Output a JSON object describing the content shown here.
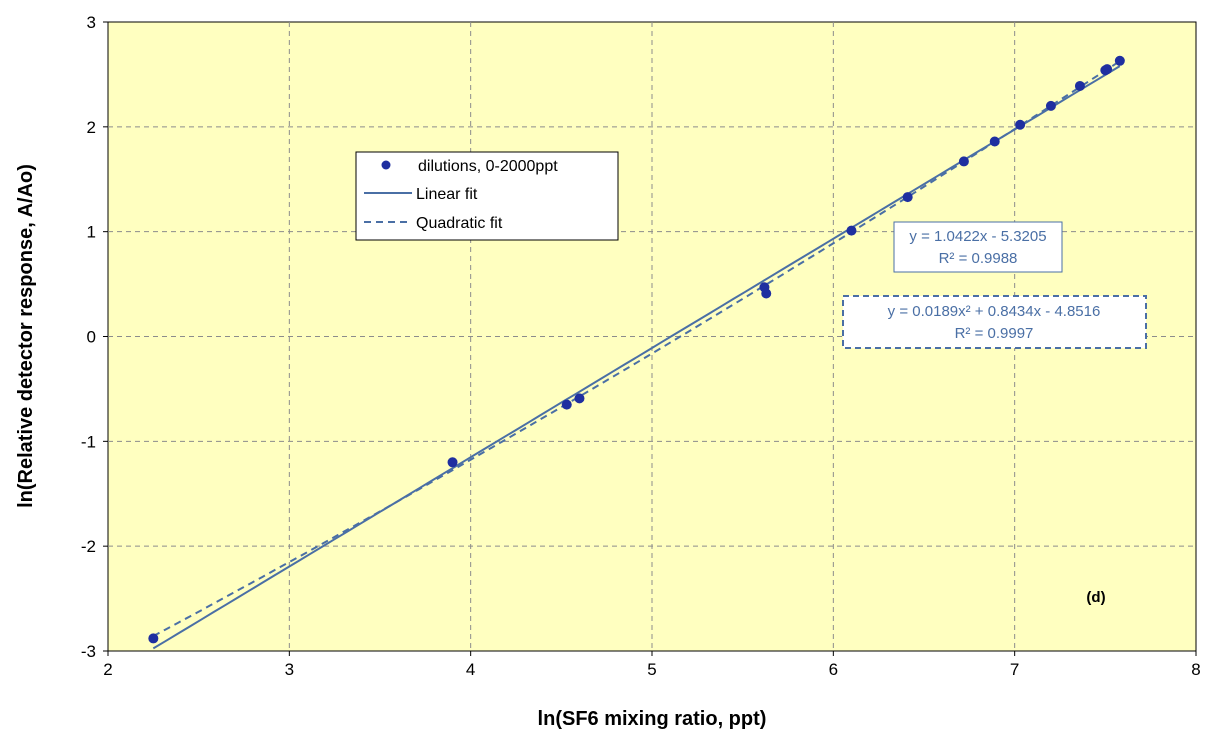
{
  "chart_data": {
    "type": "scatter",
    "xlabel": "ln(SF6 mixing ratio, ppt)",
    "ylabel": "ln(Relative detector response, A/Ao)",
    "xlim": [
      2,
      8
    ],
    "ylim": [
      -3,
      3
    ],
    "x_ticks": [
      2,
      3,
      4,
      5,
      6,
      7,
      8
    ],
    "y_ticks": [
      -3,
      -2,
      -1,
      0,
      1,
      2,
      3
    ],
    "grid": true,
    "legend_placement": "upper-left",
    "panel_label": "(d)",
    "series": [
      {
        "name": "dilutions, 0-2000ppt",
        "type": "scatter",
        "color": "#1f2fa0",
        "points": [
          [
            2.25,
            -2.88
          ],
          [
            3.9,
            -1.2
          ],
          [
            4.53,
            -0.65
          ],
          [
            4.6,
            -0.59
          ],
          [
            5.62,
            0.47
          ],
          [
            5.63,
            0.41
          ],
          [
            6.1,
            1.01
          ],
          [
            6.41,
            1.33
          ],
          [
            6.72,
            1.67
          ],
          [
            6.89,
            1.86
          ],
          [
            7.03,
            2.02
          ],
          [
            7.2,
            2.2
          ],
          [
            7.36,
            2.39
          ],
          [
            7.5,
            2.54
          ],
          [
            7.51,
            2.55
          ],
          [
            7.58,
            2.63
          ]
        ]
      },
      {
        "name": "Linear fit",
        "type": "line",
        "style": "solid",
        "color": "#4a6fa5",
        "coefficients": [
          1.0422,
          -5.3205
        ],
        "x_range": [
          2.25,
          7.58
        ]
      },
      {
        "name": "Quadratic fit",
        "type": "line",
        "style": "dashed",
        "color": "#4a6fa5",
        "coefficients": [
          0.0189,
          0.8434,
          -4.8516
        ],
        "x_range": [
          2.25,
          7.58
        ]
      }
    ],
    "annotations": {
      "linear_eq": "y = 1.0422x - 5.3205",
      "linear_r2": "R² = 0.9988",
      "quad_eq": "y = 0.0189x² + 0.8434x - 4.8516",
      "quad_r2": "R² = 0.9997"
    },
    "colors": {
      "plot_background": "#ffffc0",
      "grid": "#8c8c8c",
      "fit_line": "#4a6fa5",
      "marker": "#1f2fa0"
    }
  }
}
